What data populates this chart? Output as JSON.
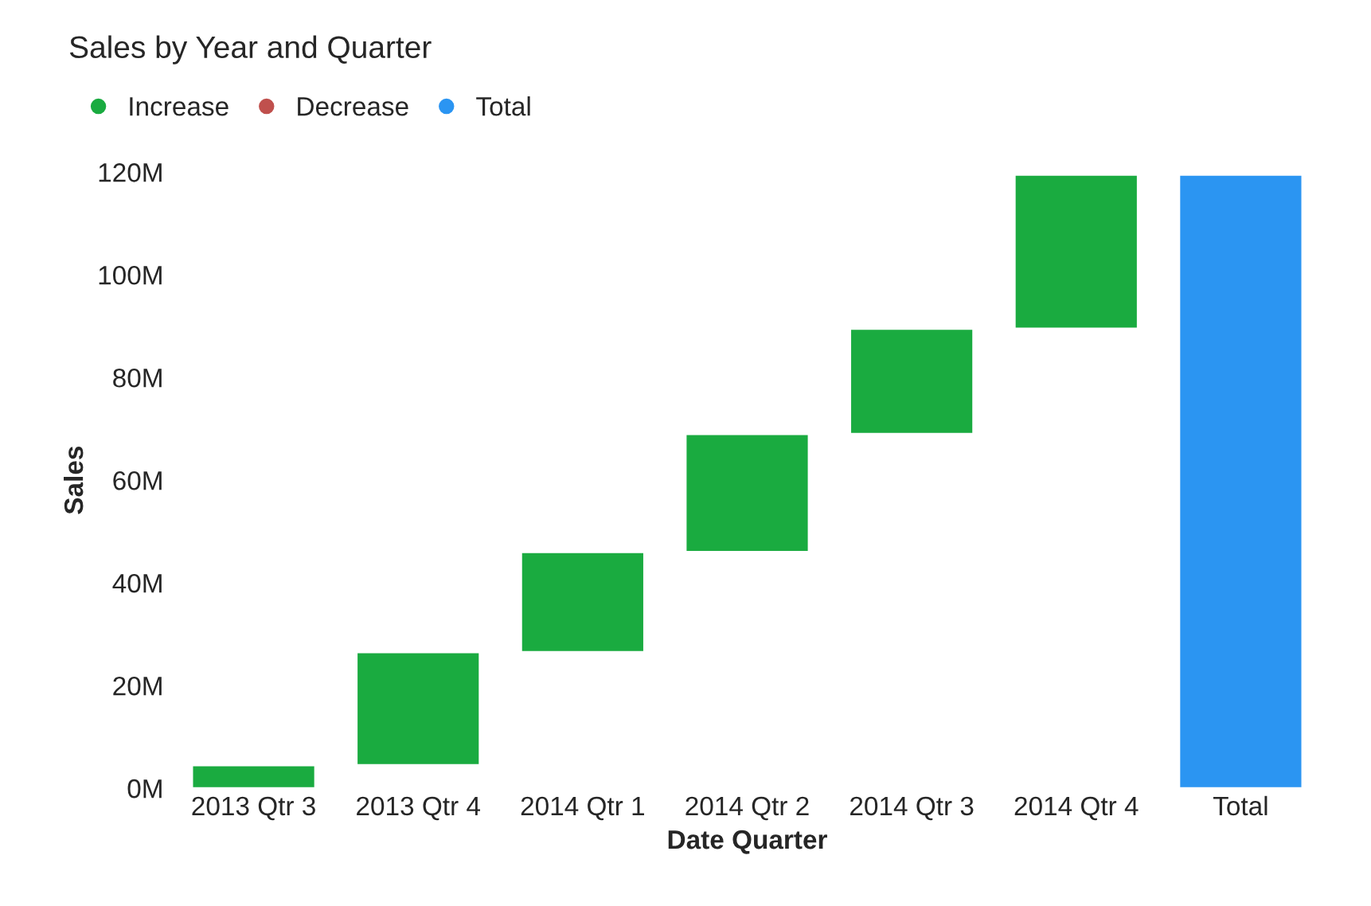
{
  "chart_data": {
    "type": "bar",
    "title": "Sales by Year and Quarter",
    "xlabel": "Date Quarter",
    "ylabel": "Sales",
    "categories": [
      "2013 Qtr 3",
      "2013 Qtr 4",
      "2014 Qtr 1",
      "2014 Qtr 2",
      "2014 Qtr 3",
      "2014 Qtr 4",
      "Total"
    ],
    "series": [
      {
        "name": "Increase",
        "color": "#1aab40",
        "values": [
          4.5,
          22,
          19.5,
          23,
          20.5,
          30,
          null
        ],
        "base": [
          0,
          4.5,
          26.5,
          46,
          69,
          89.5,
          null
        ]
      },
      {
        "name": "Decrease",
        "color": "#c0504d",
        "values": [
          null,
          null,
          null,
          null,
          null,
          null,
          null
        ]
      },
      {
        "name": "Total",
        "color": "#2b95f2",
        "values": [
          null,
          null,
          null,
          null,
          null,
          null,
          119.5
        ]
      }
    ],
    "ylim": [
      0,
      120
    ],
    "yticks": [
      {
        "value": 0,
        "label": "0M"
      },
      {
        "value": 20,
        "label": "20M"
      },
      {
        "value": 40,
        "label": "40M"
      },
      {
        "value": 60,
        "label": "60M"
      },
      {
        "value": 80,
        "label": "80M"
      },
      {
        "value": 100,
        "label": "100M"
      },
      {
        "value": 120,
        "label": "120M"
      }
    ],
    "grid": false,
    "legend": "top left"
  }
}
